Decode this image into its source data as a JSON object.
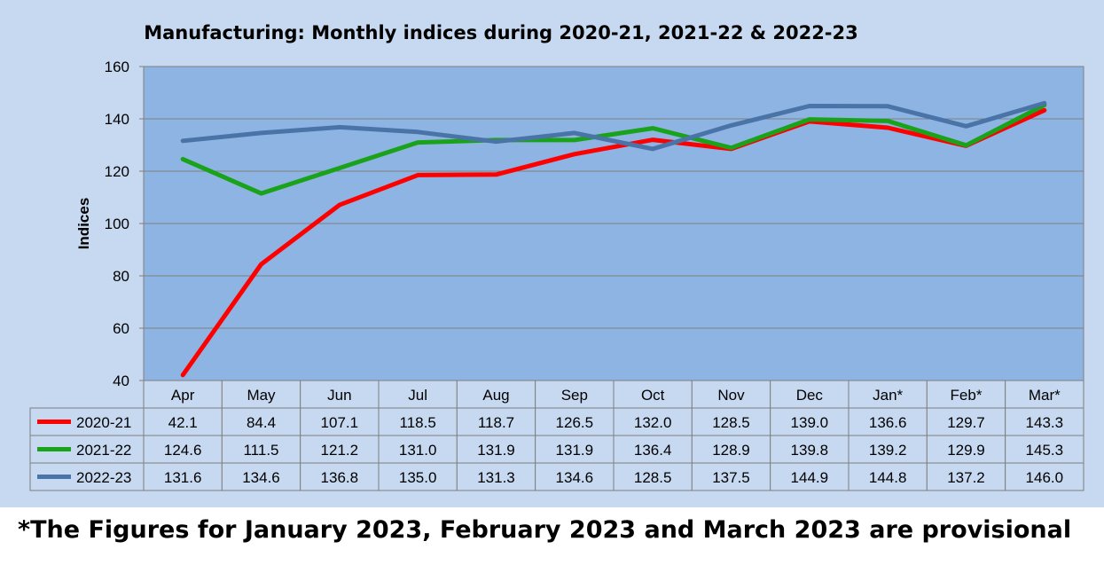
{
  "chart_data": {
    "type": "line",
    "title": "Manufacturing: Monthly indices during 2020-21, 2021-22 & 2022-23",
    "xlabel": "",
    "ylabel": "Indices",
    "ylim": [
      40,
      160
    ],
    "yticks": [
      40,
      60,
      80,
      100,
      120,
      140,
      160
    ],
    "grid": true,
    "legend": "data-table-left",
    "categories": [
      "Apr",
      "May",
      "Jun",
      "Jul",
      "Aug",
      "Sep",
      "Oct",
      "Nov",
      "Dec",
      "Jan*",
      "Feb*",
      "Mar*"
    ],
    "series": [
      {
        "name": "2020-21",
        "color": "#ff0000",
        "values": [
          42.1,
          84.4,
          107.1,
          118.5,
          118.7,
          126.5,
          132.0,
          128.5,
          139.0,
          136.6,
          129.7,
          143.3
        ],
        "labels": [
          "42.1",
          "84.4",
          "107.1",
          "118.5",
          "118.7",
          "126.5",
          "132.0",
          "128.5",
          "139.0",
          "136.6",
          "129.7",
          "143.3"
        ]
      },
      {
        "name": "2021-22",
        "color": "#1aa31a",
        "values": [
          124.6,
          111.5,
          121.2,
          131.0,
          131.9,
          131.9,
          136.4,
          128.9,
          139.8,
          139.2,
          129.9,
          145.3
        ],
        "labels": [
          "124.6",
          "111.5",
          "121.2",
          "131.0",
          "131.9",
          "131.9",
          "136.4",
          "128.9",
          "139.8",
          "139.2",
          "129.9",
          "145.3"
        ]
      },
      {
        "name": "2022-23",
        "color": "#4a74a8",
        "values": [
          131.6,
          134.6,
          136.8,
          135.0,
          131.3,
          134.6,
          128.5,
          137.5,
          144.9,
          144.8,
          137.2,
          146.0
        ],
        "labels": [
          "131.6",
          "134.6",
          "136.8",
          "135.0",
          "131.3",
          "134.6",
          "128.5",
          "137.5",
          "144.9",
          "144.8",
          "137.2",
          "146.0"
        ]
      }
    ],
    "colors": {
      "background": "#c6d9f1",
      "plot_area": "#8db4e2",
      "gridline": "#7f7f7f",
      "table_cell": "#c6d9f1"
    }
  },
  "footnote": "*The Figures for January 2023, February 2023 and March 2023 are provisional"
}
